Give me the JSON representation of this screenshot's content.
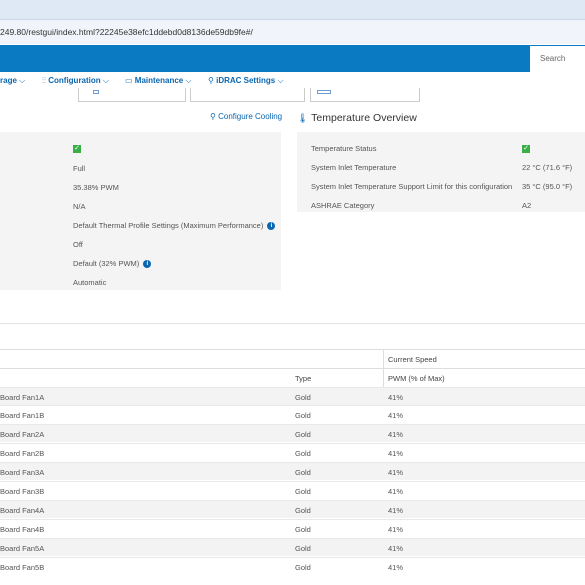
{
  "browser": {
    "url": "249.80/restgui/index.html?22245e38efc1ddebd0d8136de59db9fe#/"
  },
  "header": {
    "search_placeholder": "Search"
  },
  "menu": {
    "storage": "rage",
    "configuration": "Configuration",
    "maintenance": "Maintenance",
    "idrac_settings": "iDRAC Settings"
  },
  "cooling": {
    "configure_link": "Configure Cooling",
    "values": [
      "",
      "Full",
      "35.38% PWM",
      "N/A",
      "Default Thermal Profile Settings (Maximum Performance)",
      "Off",
      "Default (32% PWM)",
      "Automatic"
    ]
  },
  "temperature": {
    "title": "Temperature Overview",
    "rows": [
      {
        "label": "Temperature Status",
        "value": ""
      },
      {
        "label": "System Inlet Temperature",
        "value": "22 °C (71.6 °F)"
      },
      {
        "label": "System Inlet Temperature Support Limit for this configuration",
        "value": "35 °C (95.0 °F)"
      },
      {
        "label": "ASHRAE Category",
        "value": "A2"
      }
    ]
  },
  "fans": {
    "group_header": "Current Speed",
    "col_type": "Type",
    "col_pwm": "PWM (% of Max)",
    "rows": [
      {
        "name": "Board Fan1A",
        "type": "Gold",
        "pwm": "41%"
      },
      {
        "name": "Board Fan1B",
        "type": "Gold",
        "pwm": "41%"
      },
      {
        "name": "Board Fan2A",
        "type": "Gold",
        "pwm": "41%"
      },
      {
        "name": "Board Fan2B",
        "type": "Gold",
        "pwm": "41%"
      },
      {
        "name": "Board Fan3A",
        "type": "Gold",
        "pwm": "41%"
      },
      {
        "name": "Board Fan3B",
        "type": "Gold",
        "pwm": "41%"
      },
      {
        "name": "Board Fan4A",
        "type": "Gold",
        "pwm": "41%"
      },
      {
        "name": "Board Fan4B",
        "type": "Gold",
        "pwm": "41%"
      },
      {
        "name": "Board Fan5A",
        "type": "Gold",
        "pwm": "41%"
      },
      {
        "name": "Board Fan5B",
        "type": "Gold",
        "pwm": "41%"
      }
    ]
  },
  "colors": {
    "header_blue": "#0a7bc2",
    "link_blue": "#0a66b0",
    "status_green": "#3aae49"
  }
}
